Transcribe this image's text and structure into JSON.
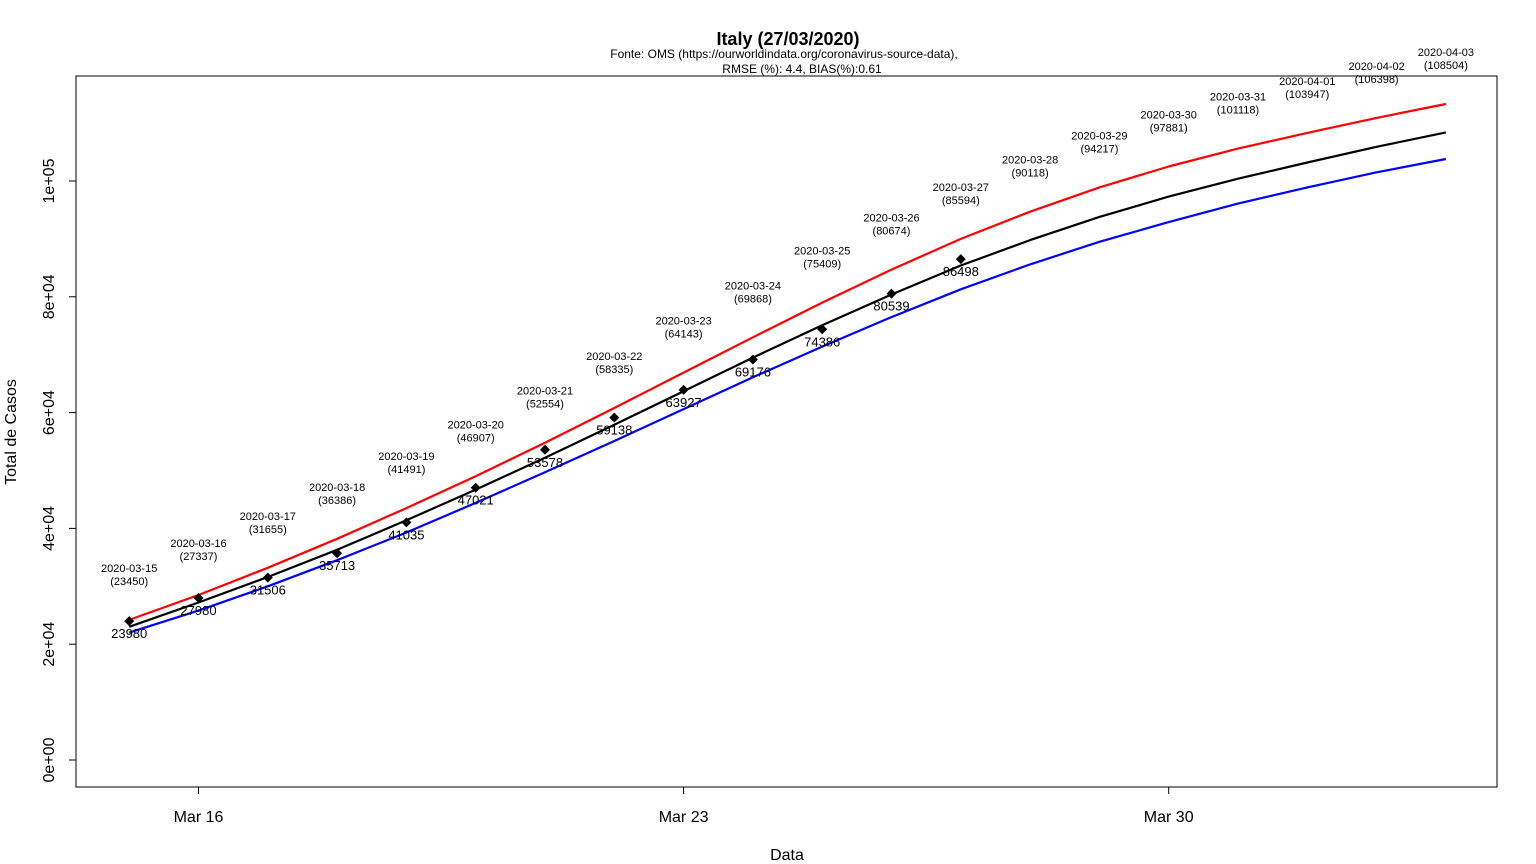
{
  "chart_data": {
    "type": "line",
    "title": "Italy (27/03/2020)",
    "subtitle_line1": "Fonte: OMS (https://ourworldindata.org/coronavirus-source-data),",
    "subtitle_line2": "RMSE (%): 4.4, BIAS(%):0.61",
    "xlabel": "Data",
    "ylabel": "Total de Casos",
    "x_ticks": [
      {
        "label": "Mar 16",
        "date": "2020-03-16"
      },
      {
        "label": "Mar 23",
        "date": "2020-03-23"
      },
      {
        "label": "Mar 30",
        "date": "2020-03-30"
      }
    ],
    "y_ticks": [
      {
        "label": "0e+00",
        "value": 0
      },
      {
        "label": "2e+04",
        "value": 20000
      },
      {
        "label": "4e+04",
        "value": 40000
      },
      {
        "label": "6e+04",
        "value": 60000
      },
      {
        "label": "8e+04",
        "value": 80000
      },
      {
        "label": "1e+05",
        "value": 100000
      }
    ],
    "xlim": [
      "2020-03-14",
      "2020-04-04"
    ],
    "ylim": [
      -4500,
      118000
    ],
    "grid": false,
    "series": [
      {
        "key": "upper",
        "color": "#ff0000",
        "x": [
          "2020-03-15",
          "2020-03-16",
          "2020-03-17",
          "2020-03-18",
          "2020-03-19",
          "2020-03-20",
          "2020-03-21",
          "2020-03-22",
          "2020-03-23",
          "2020-03-24",
          "2020-03-25",
          "2020-03-26",
          "2020-03-27",
          "2020-03-28",
          "2020-03-29",
          "2020-03-30",
          "2020-03-31",
          "2020-04-01",
          "2020-04-02",
          "2020-04-03"
        ],
        "values": [
          24200,
          28500,
          33200,
          38200,
          43500,
          49000,
          54800,
          60800,
          66900,
          73000,
          79000,
          84700,
          90000,
          94700,
          98900,
          102500,
          105600,
          108300,
          110900,
          113300
        ]
      },
      {
        "key": "model",
        "color": "#000000",
        "x": [
          "2020-03-15",
          "2020-03-16",
          "2020-03-17",
          "2020-03-18",
          "2020-03-19",
          "2020-03-20",
          "2020-03-21",
          "2020-03-22",
          "2020-03-23",
          "2020-03-24",
          "2020-03-25",
          "2020-03-26",
          "2020-03-27",
          "2020-03-28",
          "2020-03-29",
          "2020-03-30",
          "2020-03-31",
          "2020-04-01",
          "2020-04-02",
          "2020-04-03"
        ],
        "values": [
          23000,
          27200,
          31600,
          36300,
          41400,
          46700,
          52200,
          57900,
          63700,
          69500,
          75100,
          80400,
          85400,
          89800,
          93800,
          97300,
          100400,
          103200,
          105900,
          108400
        ]
      },
      {
        "key": "lower",
        "color": "#0000ff",
        "x": [
          "2020-03-15",
          "2020-03-16",
          "2020-03-17",
          "2020-03-18",
          "2020-03-19",
          "2020-03-20",
          "2020-03-21",
          "2020-03-22",
          "2020-03-23",
          "2020-03-24",
          "2020-03-25",
          "2020-03-26",
          "2020-03-27",
          "2020-03-28",
          "2020-03-29",
          "2020-03-30",
          "2020-03-31",
          "2020-04-01",
          "2020-04-02",
          "2020-04-03"
        ],
        "values": [
          22000,
          25800,
          30000,
          34500,
          39300,
          44400,
          49700,
          55100,
          60600,
          66100,
          71400,
          76500,
          81300,
          85600,
          89500,
          92900,
          96100,
          98900,
          101500,
          103800
        ]
      }
    ],
    "observed": {
      "color": "#000000",
      "marker": "diamond",
      "x": [
        "2020-03-15",
        "2020-03-16",
        "2020-03-17",
        "2020-03-18",
        "2020-03-19",
        "2020-03-20",
        "2020-03-21",
        "2020-03-22",
        "2020-03-23",
        "2020-03-24",
        "2020-03-25",
        "2020-03-26",
        "2020-03-27"
      ],
      "values": [
        23980,
        27980,
        31506,
        35713,
        41035,
        47021,
        53578,
        59138,
        63927,
        69176,
        74386,
        80539,
        86498
      ],
      "labels": [
        "23980",
        "27980",
        "31506",
        "35713",
        "41035",
        "47021",
        "53578",
        "59138",
        "63927",
        "69176",
        "74386",
        "80539",
        "86498"
      ]
    },
    "forecast_annotations": [
      {
        "date": "2020-03-15",
        "date_label": "2020-03-15",
        "value": 23450,
        "value_label": "(23450)"
      },
      {
        "date": "2020-03-16",
        "date_label": "2020-03-16",
        "value": 27337,
        "value_label": "(27337)"
      },
      {
        "date": "2020-03-17",
        "date_label": "2020-03-17",
        "value": 31655,
        "value_label": "(31655)"
      },
      {
        "date": "2020-03-18",
        "date_label": "2020-03-18",
        "value": 36386,
        "value_label": "(36386)"
      },
      {
        "date": "2020-03-19",
        "date_label": "2020-03-19",
        "value": 41491,
        "value_label": "(41491)"
      },
      {
        "date": "2020-03-20",
        "date_label": "2020-03-20",
        "value": 46907,
        "value_label": "(46907)"
      },
      {
        "date": "2020-03-21",
        "date_label": "2020-03-21",
        "value": 52554,
        "value_label": "(52554)"
      },
      {
        "date": "2020-03-22",
        "date_label": "2020-03-22",
        "value": 58335,
        "value_label": "(58335)"
      },
      {
        "date": "2020-03-23",
        "date_label": "2020-03-23",
        "value": 64143,
        "value_label": "(64143)"
      },
      {
        "date": "2020-03-24",
        "date_label": "2020-03-24",
        "value": 69868,
        "value_label": "(69868)"
      },
      {
        "date": "2020-03-25",
        "date_label": "2020-03-25",
        "value": 75409,
        "value_label": "(75409)"
      },
      {
        "date": "2020-03-26",
        "date_label": "2020-03-26",
        "value": 80674,
        "value_label": "(80674)"
      },
      {
        "date": "2020-03-27",
        "date_label": "2020-03-27",
        "value": 85594,
        "value_label": "(85594)"
      },
      {
        "date": "2020-03-28",
        "date_label": "2020-03-28",
        "value": 90118,
        "value_label": "(90118)"
      },
      {
        "date": "2020-03-29",
        "date_label": "2020-03-29",
        "value": 94217,
        "value_label": "(94217)"
      },
      {
        "date": "2020-03-30",
        "date_label": "2020-03-30",
        "value": 97881,
        "value_label": "(97881)"
      },
      {
        "date": "2020-03-31",
        "date_label": "2020-03-31",
        "value": 101118,
        "value_label": "(101118)"
      },
      {
        "date": "2020-04-01",
        "date_label": "2020-04-01",
        "value": 103947,
        "value_label": "(103947)"
      },
      {
        "date": "2020-04-02",
        "date_label": "2020-04-02",
        "value": 106398,
        "value_label": "(106398)"
      },
      {
        "date": "2020-04-03",
        "date_label": "2020-04-03",
        "value": 108504,
        "value_label": "(108504)"
      }
    ]
  }
}
